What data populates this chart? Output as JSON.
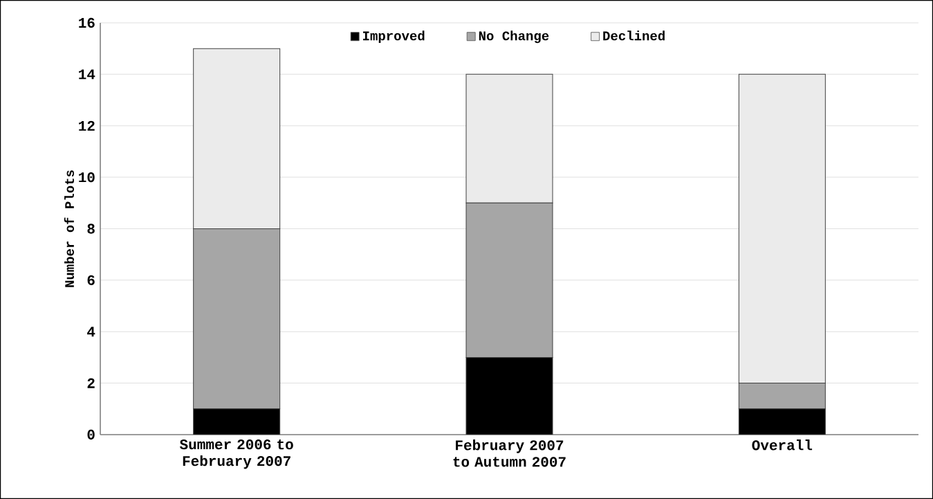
{
  "chart_data": {
    "type": "bar",
    "stacked": true,
    "ylabel": "Number of Plots",
    "categories": [
      "Summer 2006 to February 2007",
      "February 2007 to Autumn 2007",
      "Overall"
    ],
    "series": [
      {
        "name": "Improved",
        "color": "#000000",
        "values": [
          1,
          3,
          1
        ]
      },
      {
        "name": "No Change",
        "color": "#a6a6a6",
        "values": [
          7,
          6,
          1
        ]
      },
      {
        "name": "Declined",
        "color": "#ebebeb",
        "values": [
          7,
          5,
          12
        ]
      }
    ],
    "ylim": [
      0,
      16
    ],
    "yticks": [
      0,
      2,
      4,
      6,
      8,
      10,
      12,
      14,
      16
    ],
    "grid": "y",
    "legend": "top"
  }
}
